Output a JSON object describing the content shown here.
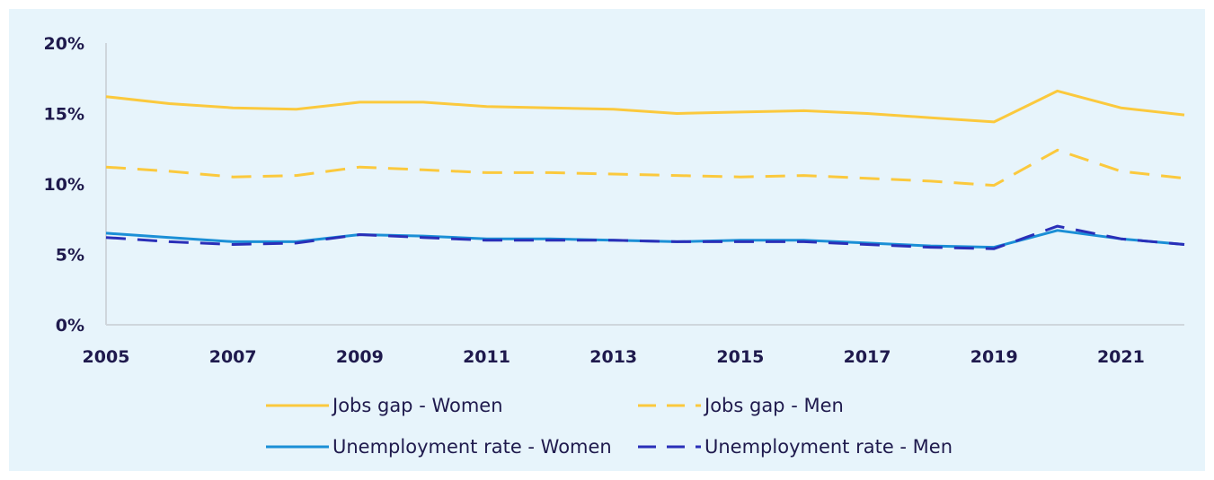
{
  "chart_data": {
    "type": "line",
    "x": [
      2005,
      2006,
      2007,
      2008,
      2009,
      2010,
      2011,
      2012,
      2013,
      2014,
      2015,
      2016,
      2017,
      2018,
      2019,
      2020,
      2021,
      2022
    ],
    "x_ticks": [
      "2005",
      "2007",
      "2009",
      "2011",
      "2013",
      "2015",
      "2017",
      "2019",
      "2021"
    ],
    "y_ticks": [
      "0%",
      "5%",
      "10%",
      "15%",
      "20%"
    ],
    "ylim": [
      0,
      20
    ],
    "grid": false,
    "legend_position": "bottom",
    "series": [
      {
        "name": "Jobs gap - Women",
        "color": "#fbc93d",
        "dash": "solid",
        "values": [
          16.2,
          15.7,
          15.4,
          15.3,
          15.8,
          15.8,
          15.5,
          15.4,
          15.3,
          15.0,
          15.1,
          15.2,
          15.0,
          14.7,
          14.4,
          16.6,
          15.4,
          14.9
        ]
      },
      {
        "name": "Jobs gap - Men",
        "color": "#fbc93d",
        "dash": "dashed",
        "values": [
          11.2,
          10.9,
          10.5,
          10.6,
          11.2,
          11.0,
          10.8,
          10.8,
          10.7,
          10.6,
          10.5,
          10.6,
          10.4,
          10.2,
          9.9,
          12.4,
          10.9,
          10.4
        ]
      },
      {
        "name": "Unemployment rate - Women",
        "color": "#1b8fd6",
        "dash": "solid",
        "values": [
          6.5,
          6.2,
          5.9,
          5.9,
          6.4,
          6.3,
          6.1,
          6.1,
          6.0,
          5.9,
          6.0,
          6.0,
          5.8,
          5.6,
          5.5,
          6.7,
          6.1,
          5.7
        ]
      },
      {
        "name": "Unemployment rate - Men",
        "color": "#2a2fb8",
        "dash": "dashed",
        "values": [
          6.2,
          5.9,
          5.7,
          5.8,
          6.4,
          6.2,
          6.0,
          6.0,
          6.0,
          5.9,
          5.9,
          5.9,
          5.7,
          5.5,
          5.4,
          7.0,
          6.1,
          5.7
        ]
      }
    ]
  }
}
